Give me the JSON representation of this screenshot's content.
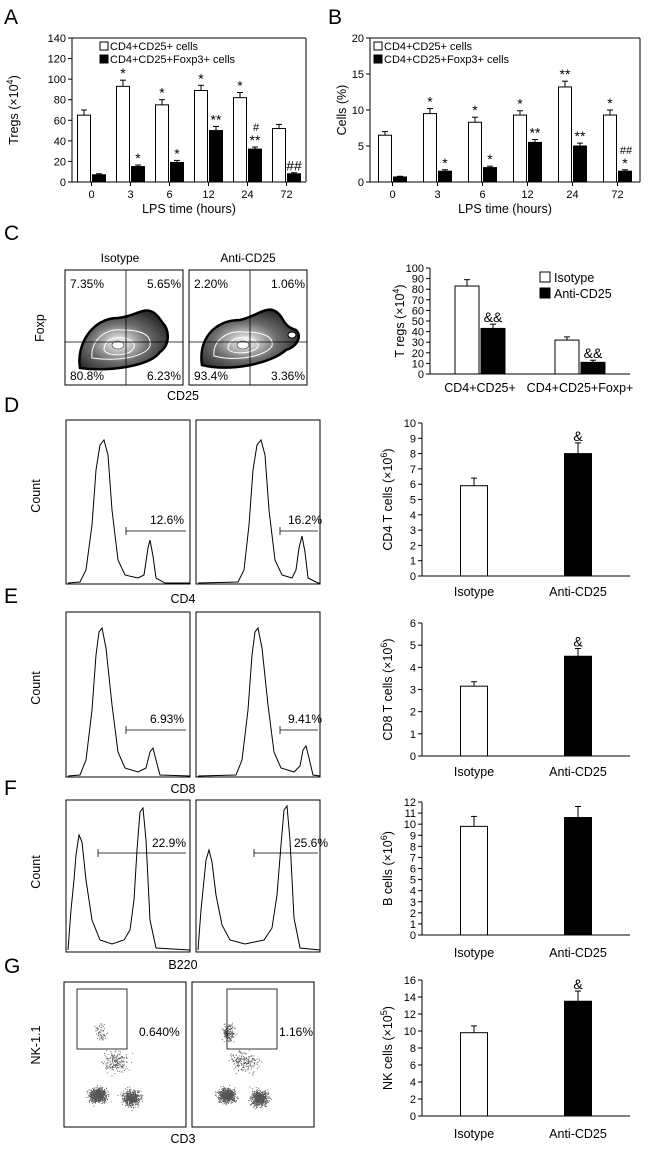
{
  "colors": {
    "open_bar": "#ffffff",
    "filled_bar": "#000000",
    "stroke": "#000000"
  },
  "chart_data": [
    {
      "panel": "A",
      "type": "bar",
      "ylabel_main": "Tregs (×10",
      "ylabel_sup": "4",
      "ylabel_close": ")",
      "xlabel": "LPS time (hours)",
      "categories": [
        "0",
        "3",
        "6",
        "12",
        "24",
        "72"
      ],
      "ylim": [
        0,
        140
      ],
      "yticks": [
        0,
        20,
        40,
        60,
        80,
        100,
        120,
        140
      ],
      "legend": [
        "CD4+CD25+ cells",
        "CD4+CD25+Foxp3+ cells"
      ],
      "series": [
        {
          "name": "CD4+CD25+ cells",
          "fill": "open",
          "values": [
            65,
            93,
            75,
            89,
            82,
            52
          ],
          "errors": [
            5,
            6,
            5,
            5,
            5,
            4
          ],
          "annotations": [
            "",
            "*",
            "*",
            "*",
            "*",
            ""
          ]
        },
        {
          "name": "CD4+CD25+Foxp3+ cells",
          "fill": "filled",
          "values": [
            7,
            15,
            19,
            50,
            32,
            8
          ],
          "errors": [
            1,
            1.5,
            2,
            4,
            2,
            1
          ],
          "annotations": [
            "",
            "*",
            "*",
            "**",
            "**",
            "##"
          ],
          "annotations2": [
            "",
            "",
            "",
            "",
            "#",
            ""
          ]
        }
      ]
    },
    {
      "panel": "B",
      "type": "bar",
      "ylabel_main": "Cells (%)",
      "xlabel": "LPS time (hours)",
      "categories": [
        "0",
        "3",
        "6",
        "12",
        "24",
        "72"
      ],
      "ylim": [
        0,
        20
      ],
      "yticks": [
        0,
        5,
        10,
        15,
        20
      ],
      "legend": [
        "CD4+CD25+ cells",
        "CD4+CD25+Foxp3+ cells"
      ],
      "series": [
        {
          "name": "CD4+CD25+ cells",
          "fill": "open",
          "values": [
            6.5,
            9.5,
            8.3,
            9.3,
            13.2,
            9.3
          ],
          "errors": [
            0.5,
            0.7,
            0.7,
            0.6,
            0.8,
            0.7
          ],
          "annotations": [
            "",
            "*",
            "*",
            "*",
            "**",
            "*"
          ]
        },
        {
          "name": "CD4+CD25+Foxp3+ cells",
          "fill": "filled",
          "values": [
            0.7,
            1.5,
            2.0,
            5.5,
            5.0,
            1.5
          ],
          "errors": [
            0.1,
            0.2,
            0.2,
            0.4,
            0.4,
            0.2
          ],
          "annotations": [
            "",
            "*",
            "*",
            "**",
            "**",
            "*"
          ],
          "annotations2": [
            "",
            "",
            "",
            "",
            "",
            "##"
          ]
        }
      ]
    },
    {
      "panel": "C",
      "type": "bar",
      "ylabel_main": "T regs (×10",
      "ylabel_sup": "4",
      "ylabel_close": ")",
      "categories": [
        "CD4+CD25+",
        "CD4+CD25+Foxp+"
      ],
      "ylim": [
        0,
        100
      ],
      "yticks": [
        0,
        10,
        20,
        30,
        40,
        50,
        60,
        70,
        80,
        90,
        100
      ],
      "legend": [
        "Isotype",
        "Anti-CD25"
      ],
      "series": [
        {
          "name": "Isotype",
          "fill": "open",
          "values": [
            83,
            32
          ],
          "errors": [
            6,
            3
          ],
          "annotations": [
            "",
            ""
          ]
        },
        {
          "name": "Anti-CD25",
          "fill": "filled",
          "values": [
            43,
            11
          ],
          "errors": [
            4,
            2
          ],
          "annotations": [
            "&&",
            "&&"
          ]
        }
      ]
    },
    {
      "panel": "D",
      "type": "bar",
      "ylabel_main": "CD4 T cells (×10",
      "ylabel_sup": "6",
      "ylabel_close": ")",
      "categories": [
        "Isotype",
        "Anti-CD25"
      ],
      "fills": [
        "open",
        "filled"
      ],
      "values": [
        5.9,
        8.0
      ],
      "errors": [
        0.5,
        0.7
      ],
      "annotations": [
        "",
        "&"
      ],
      "ylim": [
        0,
        10
      ],
      "yticks": [
        0,
        1,
        2,
        3,
        4,
        5,
        6,
        7,
        8,
        9,
        10
      ]
    },
    {
      "panel": "E",
      "type": "bar",
      "ylabel_main": "CD8 T cells (×10",
      "ylabel_sup": "6",
      "ylabel_close": ")",
      "categories": [
        "Isotype",
        "Anti-CD25"
      ],
      "fills": [
        "open",
        "filled"
      ],
      "values": [
        3.15,
        4.5
      ],
      "errors": [
        0.2,
        0.35
      ],
      "annotations": [
        "",
        "&"
      ],
      "ylim": [
        0,
        6
      ],
      "yticks": [
        0,
        1,
        2,
        3,
        4,
        5,
        6
      ]
    },
    {
      "panel": "F",
      "type": "bar",
      "ylabel_main": "B cells (×10",
      "ylabel_sup": "6",
      "ylabel_close": ")",
      "categories": [
        "Isotype",
        "Anti-CD25"
      ],
      "fills": [
        "open",
        "filled"
      ],
      "values": [
        9.8,
        10.6
      ],
      "errors": [
        0.9,
        1.0
      ],
      "annotations": [
        "",
        ""
      ],
      "ylim": [
        0,
        12
      ],
      "yticks": [
        0,
        1,
        2,
        3,
        4,
        5,
        6,
        7,
        8,
        9,
        10,
        11,
        12
      ]
    },
    {
      "panel": "G",
      "type": "bar",
      "ylabel_main": "NK cells (×10",
      "ylabel_sup": "5",
      "ylabel_close": ")",
      "categories": [
        "Isotype",
        "Anti-CD25"
      ],
      "fills": [
        "open",
        "filled"
      ],
      "values": [
        9.8,
        13.5
      ],
      "errors": [
        0.8,
        1.2
      ],
      "annotations": [
        "",
        "&"
      ],
      "ylim": [
        0,
        16
      ],
      "yticks": [
        0,
        2,
        4,
        6,
        8,
        10,
        12,
        14,
        16
      ]
    }
  ],
  "flow_panels": {
    "C": {
      "titles": [
        "Isotype",
        "Anti-CD25"
      ],
      "xlabel": "CD25",
      "ylabel": "Foxp",
      "quadrants": [
        [
          "7.35%",
          "5.65%",
          "80.8%",
          "6.23%"
        ],
        [
          "2.20%",
          "1.06%",
          "93.4%",
          "3.36%"
        ]
      ]
    },
    "D": {
      "xlabel": "CD4",
      "ylabel": "Count",
      "gates": [
        "12.6%",
        "16.2%"
      ]
    },
    "E": {
      "xlabel": "CD8",
      "ylabel": "Count",
      "gates": [
        "6.93%",
        "9.41%"
      ]
    },
    "F": {
      "xlabel": "B220",
      "ylabel": "Count",
      "gates": [
        "22.9%",
        "25.6%"
      ]
    },
    "G": {
      "xlabel": "CD3",
      "ylabel": "NK-1.1",
      "gates": [
        "0.640%",
        "1.16%"
      ]
    }
  },
  "panel_labels": [
    "A",
    "B",
    "C",
    "D",
    "E",
    "F",
    "G"
  ]
}
